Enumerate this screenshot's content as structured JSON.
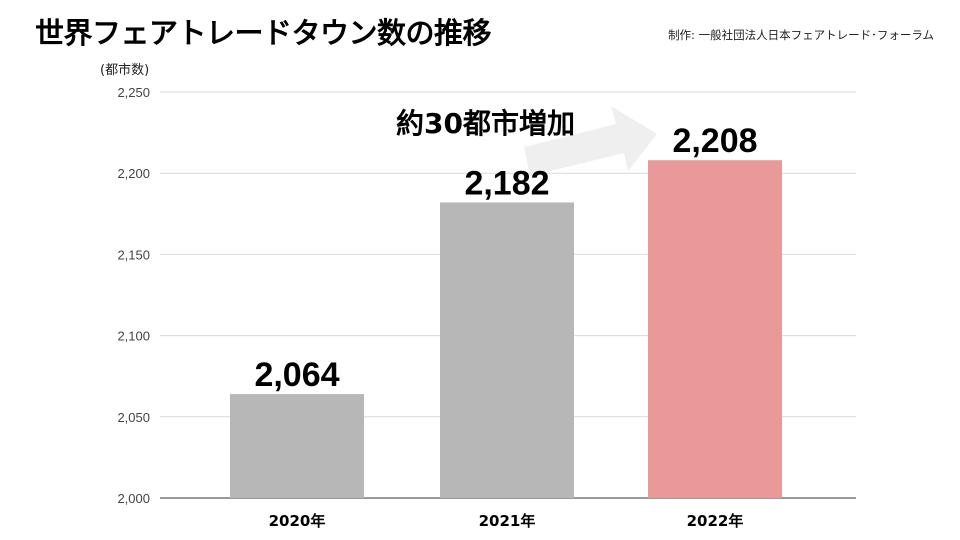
{
  "header": {
    "title": "世界フェアトレードタウン数の推移",
    "credit": "制作: 一般社団法人日本フェアトレード･フォーラム"
  },
  "colors": {
    "bar_default": "#b7b7b7",
    "bar_highlight": "#ea9999",
    "grid": "#d9d9d9",
    "arrow": "#efefef"
  },
  "chart_data": {
    "type": "bar",
    "categories": [
      "2020年",
      "2021年",
      "2022年"
    ],
    "values": [
      2064,
      2182,
      2208
    ],
    "data_labels": [
      "2,064",
      "2,182",
      "2,208"
    ],
    "highlight_index": 2,
    "title": "世界フェアトレードタウン数の推移",
    "xlabel": "",
    "ylabel": "(都市数)",
    "ylim": [
      2000,
      2250
    ],
    "yticks": [
      2000,
      2050,
      2100,
      2150,
      2200,
      2250
    ],
    "ytick_labels": [
      "2,000",
      "2,050",
      "2,100",
      "2,150",
      "2,200",
      "2,250"
    ],
    "grid": true,
    "legend": "none",
    "annotation": "約30都市増加"
  }
}
